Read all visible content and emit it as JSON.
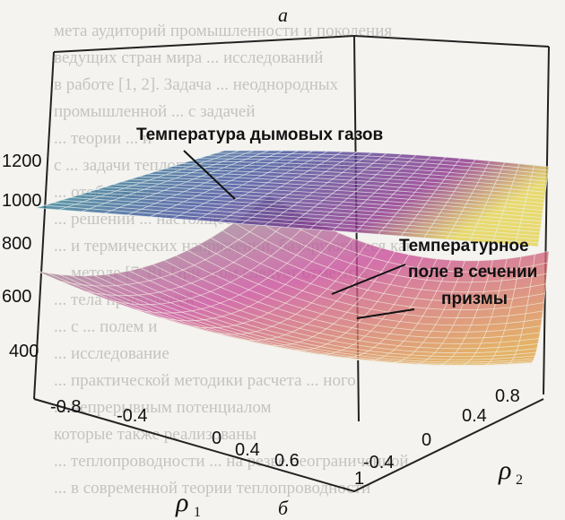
{
  "figure": {
    "label_top": "a",
    "label_bottom": "б",
    "annotation_flue": "Температура дымовых газов",
    "annotation_prism": [
      "Температурное",
      "поле в  сечении",
      "призмы"
    ],
    "axis_x_label": "ρ",
    "axis_x_sub": "1",
    "axis_y_label": "ρ",
    "axis_y_sub": "2",
    "z_ticks": [
      "1200",
      "1000",
      "800",
      "600",
      "400"
    ],
    "x_ticks": [
      "-0.8",
      "-0.4",
      "0",
      "0.4",
      "0.6",
      "1"
    ],
    "y_ticks": [
      "0.8",
      "0.4",
      "0",
      "-0.4"
    ],
    "colors": {
      "flue_top": "#2a9a8e",
      "flue_mid": "#3c4a9a",
      "flue_low": "#8a2a86",
      "flue_edge": "#e6d24a",
      "prism_top": "#7fc09a",
      "prism_mid": "#c94a9a",
      "prism_low": "#e0a040"
    }
  },
  "background_text": [
    "мета аудиторий промышленности и поколения",
    "ведущих стран мира ... исследований",
    "в работе [1, 2]. Задача ... неоднородных",
    "промышленной ... с задачей",
    "... теории ... и",
    "с ... задачи теплопроводности. Получение",
    "... отображает",
    "... решений ... настоящее",
    "... и термических напряжений, базирующиеся как",
    "... методе [7, 8]. При этом следует отметить,",
    "... тела простейшей",
    "... с ... полем и",
    "... исследование",
    "... практической методики расчета ... ного",
    "... непрерывным потенциалом",
    "которые также реализованы",
    "... теплопроводности ... на резве неограниченной",
    "... в современной теории теплопроводности"
  ]
}
